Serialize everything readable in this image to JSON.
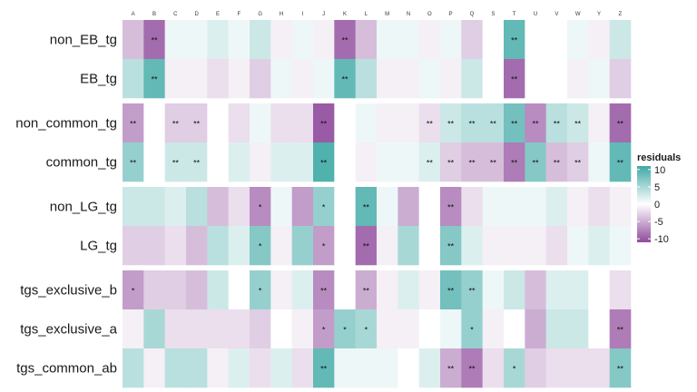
{
  "chart_data": {
    "type": "heatmap",
    "columns": [
      "A",
      "B",
      "C",
      "D",
      "E",
      "F",
      "G",
      "H",
      "I",
      "J",
      "K",
      "L",
      "M",
      "N",
      "O",
      "P",
      "Q",
      "S",
      "T",
      "U",
      "V",
      "W",
      "Y",
      "Z"
    ],
    "groups": [
      {
        "rows": [
          "non_EB_tg",
          "EB_tg"
        ]
      },
      {
        "rows": [
          "non_common_tg",
          "common_tg"
        ]
      },
      {
        "rows": [
          "non_LG_tg",
          "LG_tg"
        ]
      },
      {
        "rows": [
          "tgs_exclusive_b",
          "tgs_exclusive_a",
          "tgs_common_ab"
        ]
      }
    ],
    "residuals": {
      "non_EB_tg": [
        -4,
        -9,
        1,
        1,
        2,
        1,
        3,
        -1,
        1,
        -1,
        -9,
        -4,
        1,
        1,
        -1,
        1,
        -3,
        0,
        9,
        0,
        0,
        1,
        -1,
        3
      ],
      "EB_tg": [
        4,
        9,
        -1,
        -1,
        -2,
        -1,
        -3,
        1,
        -1,
        1,
        9,
        4,
        -1,
        -1,
        1,
        -1,
        3,
        0,
        -9,
        0,
        0,
        -1,
        1,
        -3
      ],
      "non_common_tg": [
        -6,
        0,
        -3,
        -3,
        0,
        -2,
        1,
        -2,
        -2,
        -10,
        0,
        1,
        -1,
        -1,
        -2,
        3,
        4,
        4,
        8,
        -7,
        4,
        3,
        -1,
        -9
      ],
      "common_tg": [
        6,
        0,
        3,
        3,
        0,
        2,
        -1,
        2,
        2,
        10,
        0,
        -1,
        1,
        1,
        2,
        -3,
        -4,
        -4,
        -8,
        7,
        -4,
        -3,
        1,
        9
      ],
      "non_LG_tg": [
        3,
        3,
        2,
        4,
        -4,
        -2,
        -7,
        1,
        -6,
        6,
        0,
        9,
        1,
        -5,
        0,
        -7,
        -2,
        1,
        1,
        1,
        2,
        -1,
        -2,
        -1
      ],
      "LG_tg": [
        -3,
        -3,
        -2,
        -4,
        4,
        2,
        7,
        -1,
        6,
        -6,
        0,
        -9,
        -1,
        5,
        0,
        7,
        2,
        -1,
        -1,
        -1,
        -2,
        1,
        2,
        1
      ],
      "tgs_exclusive_b": [
        -6,
        -3,
        -3,
        -4,
        3,
        0,
        6,
        -1,
        2,
        -7,
        0,
        -5,
        -1,
        2,
        -1,
        8,
        6,
        1,
        3,
        -4,
        2,
        2,
        0,
        -2
      ],
      "tgs_exclusive_a": [
        -1,
        5,
        -2,
        -2,
        -2,
        -2,
        -3,
        0,
        -1,
        -6,
        6,
        5,
        -1,
        -1,
        0,
        1,
        6,
        -1,
        0,
        -5,
        3,
        3,
        0,
        -8
      ],
      "tgs_common_ab": [
        4,
        -1,
        4,
        4,
        -1,
        2,
        -2,
        2,
        -2,
        9,
        1,
        1,
        1,
        0,
        2,
        -5,
        -8,
        -2,
        5,
        -3,
        -2,
        -2,
        -2,
        7
      ]
    },
    "significance": {
      "non_EB_tg": [
        "",
        "**",
        "",
        "",
        "",
        "",
        "",
        "",
        "",
        "",
        "**",
        "",
        "",
        "",
        "",
        "",
        "",
        "",
        "**",
        "",
        "",
        "",
        "",
        ""
      ],
      "EB_tg": [
        "",
        "**",
        "",
        "",
        "",
        "",
        "",
        "",
        "",
        "",
        "**",
        "",
        "",
        "",
        "",
        "",
        "",
        "",
        "**",
        "",
        "",
        "",
        "",
        ""
      ],
      "non_common_tg": [
        "**",
        "",
        "**",
        "**",
        "",
        "",
        "",
        "",
        "",
        "**",
        "",
        "",
        "",
        "",
        "**",
        "**",
        "**",
        "**",
        "**",
        "**",
        "**",
        "**",
        "",
        "**"
      ],
      "common_tg": [
        "**",
        "",
        "**",
        "**",
        "",
        "",
        "",
        "",
        "",
        "**",
        "",
        "",
        "",
        "",
        "**",
        "**",
        "**",
        "**",
        "**",
        "**",
        "**",
        "**",
        "",
        "**"
      ],
      "non_LG_tg": [
        "",
        "",
        "",
        "",
        "",
        "",
        "*",
        "",
        "",
        "*",
        "",
        "**",
        "",
        "",
        "",
        "**",
        "",
        "",
        "",
        "",
        "",
        "",
        "",
        ""
      ],
      "LG_tg": [
        "",
        "",
        "",
        "",
        "",
        "",
        "*",
        "",
        "",
        "*",
        "",
        "**",
        "",
        "",
        "",
        "**",
        "",
        "",
        "",
        "",
        "",
        "",
        "",
        ""
      ],
      "tgs_exclusive_b": [
        "*",
        "",
        "",
        "",
        "",
        "",
        "*",
        "",
        "",
        "**",
        "",
        "**",
        "",
        "",
        "",
        "**",
        "**",
        "",
        "",
        "",
        "",
        "",
        "",
        ""
      ],
      "tgs_exclusive_a": [
        "",
        "",
        "",
        "",
        "",
        "",
        "",
        "",
        "",
        "*",
        "*",
        "*",
        "",
        "",
        "",
        "",
        "*",
        "",
        "",
        "",
        "",
        "",
        "",
        "**"
      ],
      "tgs_common_ab": [
        "",
        "",
        "",
        "",
        "",
        "",
        "",
        "",
        "",
        "**",
        "",
        "",
        "",
        "",
        "",
        "**",
        "**",
        "",
        "*",
        "",
        "",
        "",
        "",
        "**"
      ]
    },
    "blank_cells": {
      "non_common_tg": [
        "E"
      ],
      "common_tg": [
        "E"
      ],
      "non_LG_tg": [
        "K"
      ],
      "LG_tg": [
        "K"
      ]
    },
    "legend": {
      "title": "residuals",
      "ticks": [
        10,
        5,
        0,
        -5,
        -10
      ],
      "placement": "right",
      "range": [
        -11,
        11
      ]
    },
    "colors": {
      "high": "#3fa9a5",
      "mid": "#ffffff",
      "low": "#8f4b9c",
      "blank": "#ffffff"
    }
  }
}
